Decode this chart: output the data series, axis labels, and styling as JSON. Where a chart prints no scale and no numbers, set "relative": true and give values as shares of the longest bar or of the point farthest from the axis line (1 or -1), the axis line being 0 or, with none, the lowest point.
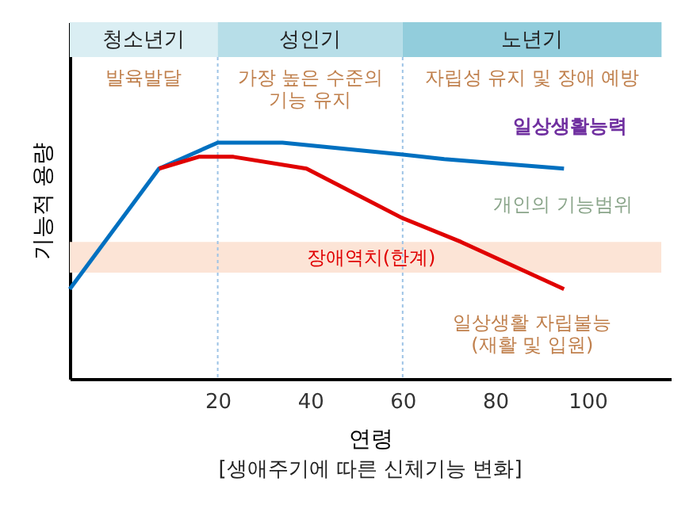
{
  "chart_data": {
    "type": "line",
    "relative": true,
    "title": "[생애주기에 따른 신체기능 변화]",
    "xlabel": "연령",
    "ylabel": "기능적 용량",
    "xlim": [
      -12,
      118
    ],
    "xticks": [
      20,
      40,
      60,
      80,
      100
    ],
    "grid": false,
    "legend": false,
    "marker": "none",
    "series": [
      {
        "name": "일상생활능력",
        "color": "#0070c0",
        "x": [
          -12,
          7.3,
          20,
          34,
          60,
          69,
          94.9
        ],
        "values": [
          0.38,
          0.89,
          1,
          1,
          0.95,
          0.93,
          0.89
        ]
      },
      {
        "name": "일상생활 자립불능\n(재활 및 입원)",
        "color": "#e00000",
        "x": [
          7.3,
          15.9,
          23.4,
          39.2,
          60,
          72.6,
          94.9
        ],
        "values": [
          0.89,
          0.94,
          0.94,
          0.89,
          0.68,
          0.58,
          0.38
        ]
      }
    ],
    "bands": [
      {
        "axis": "x",
        "from": -12,
        "to": 20,
        "label": "청소년기",
        "color": "#daeef3"
      },
      {
        "axis": "x",
        "from": 20,
        "to": 60,
        "label": "성인기",
        "color": "#b7dee8"
      },
      {
        "axis": "x",
        "from": 60,
        "to": 116,
        "label": "노년기",
        "color": "#92cddc"
      },
      {
        "axis": "y",
        "from": 0.45,
        "to": 0.58,
        "label": "장애역치(한계)",
        "color": "#fce4d6"
      }
    ],
    "ref_lines": [
      {
        "axis": "x",
        "value": 20,
        "color": "#9dc3e6",
        "line_style": "dotted"
      },
      {
        "axis": "x",
        "value": 60,
        "color": "#9dc3e6",
        "line_style": "dotted"
      }
    ],
    "annotations": [
      "발육발달",
      "가장 높은 수준의\n기능 유지",
      "자립성 유지 및 장애 예방",
      "개인의 기능범위"
    ]
  }
}
